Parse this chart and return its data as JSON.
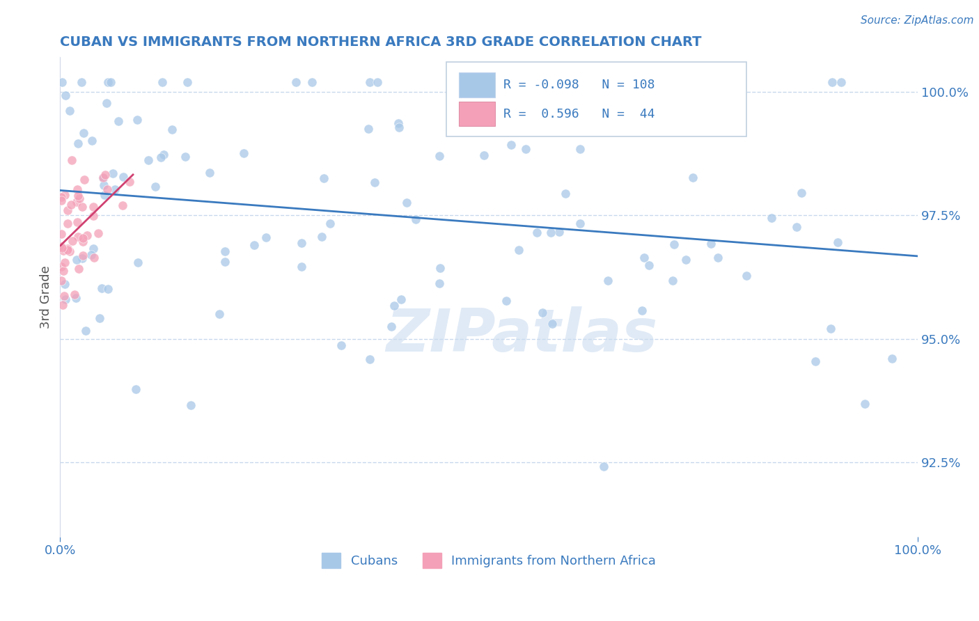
{
  "title": "CUBAN VS IMMIGRANTS FROM NORTHERN AFRICA 3RD GRADE CORRELATION CHART",
  "source_text": "Source: ZipAtlas.com",
  "ylabel": "3rd Grade",
  "watermark": "ZIPatlas",
  "x_min": 0.0,
  "x_max": 100.0,
  "y_min": 91.0,
  "y_max": 100.7,
  "blue_R": -0.098,
  "blue_N": 108,
  "pink_R": 0.596,
  "pink_N": 44,
  "blue_color": "#a8c8e8",
  "pink_color": "#f4a0b8",
  "blue_line_color": "#3a7abf",
  "pink_line_color": "#d04070",
  "title_color": "#3a7abf",
  "tick_color": "#3a7abf",
  "grid_color": "#c8d8ec",
  "ylabel_color": "#555555",
  "background_color": "#ffffff",
  "watermark_color": "#ccddf0",
  "legend_border_color": "#c0d0e0"
}
